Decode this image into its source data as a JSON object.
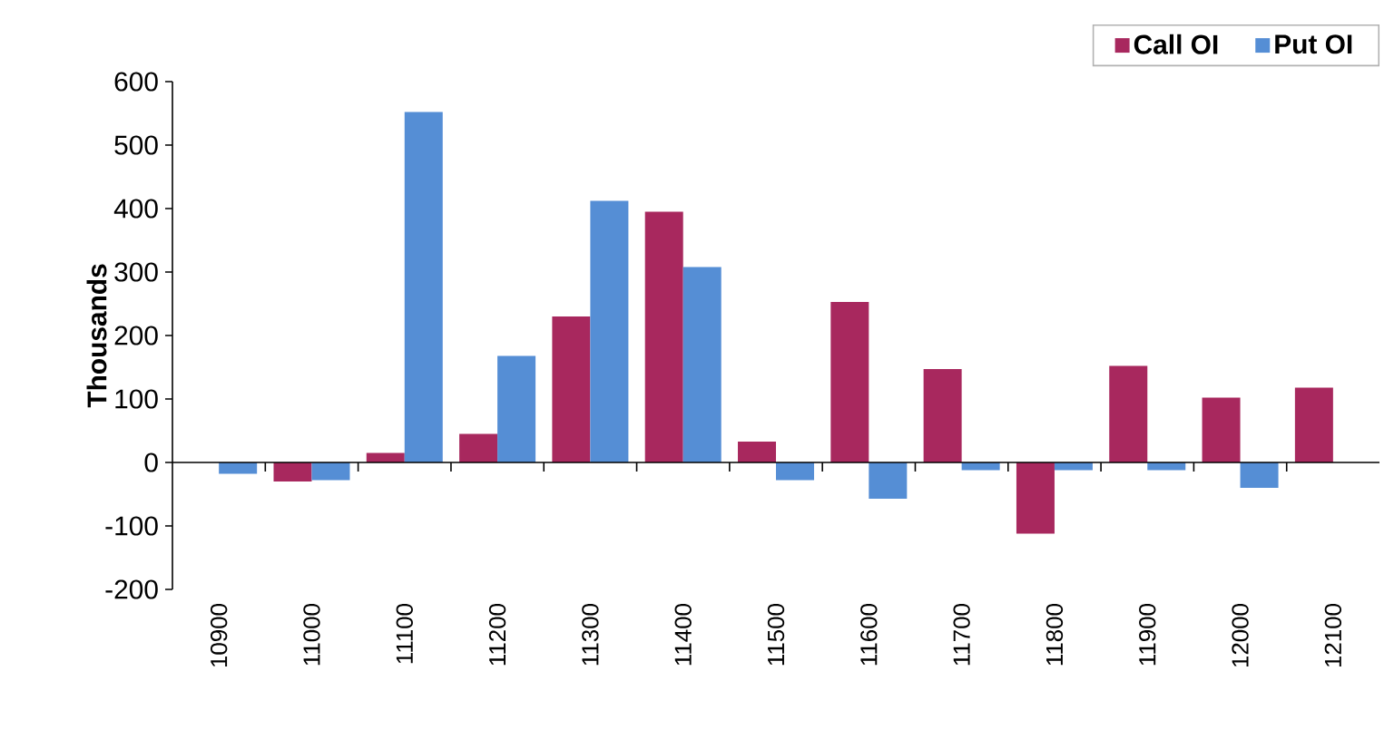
{
  "chart_data": {
    "type": "bar",
    "ylabel": "Thousands",
    "categories": [
      "10900",
      "11000",
      "11100",
      "11200",
      "11300",
      "11400",
      "11500",
      "11600",
      "11700",
      "11800",
      "11900",
      "12000",
      "12100"
    ],
    "series": [
      {
        "name": "Call OI",
        "color": "#a8285e",
        "values": [
          null,
          -30,
          15,
          45,
          230,
          395,
          33,
          253,
          147,
          -112,
          152,
          102,
          118
        ]
      },
      {
        "name": "Put OI",
        "color": "#558ed5",
        "values": [
          -18,
          -28,
          552,
          168,
          412,
          308,
          -28,
          -57,
          -12,
          -12,
          -12,
          -40,
          null
        ]
      }
    ],
    "ylim": [
      -200,
      600
    ],
    "yticks": [
      -200,
      -100,
      0,
      100,
      200,
      300,
      400,
      500,
      600
    ],
    "legend": "top right",
    "grid": false,
    "ref_lines": [
      {
        "axis": "y",
        "value": 0
      }
    ]
  }
}
